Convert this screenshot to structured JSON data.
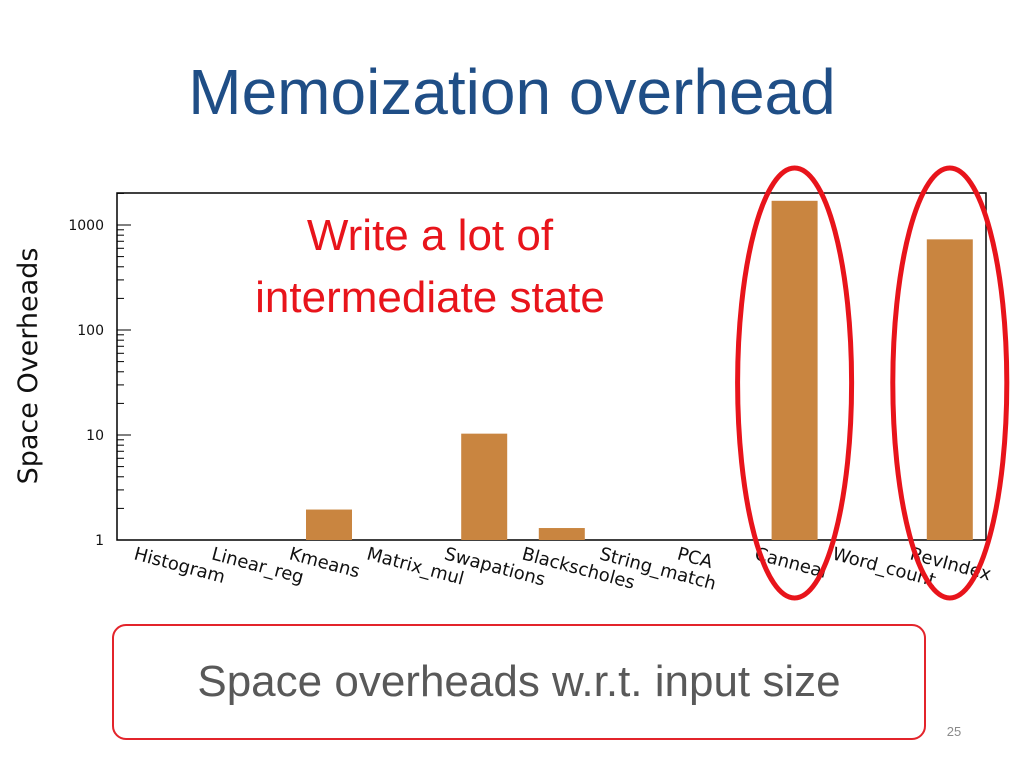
{
  "slide": {
    "title": "Memoization overhead",
    "callout_lines": [
      "Write a lot of",
      "intermediate state"
    ],
    "caption": "Space overheads w.r.t. input size",
    "page_number": "25"
  },
  "colors": {
    "title": "#1f4e86",
    "bar": "#c98540",
    "highlight": "#e8141b",
    "caption_text": "#595959"
  },
  "chart_data": {
    "type": "bar",
    "ylabel": "Space Overheads",
    "xlabel": "",
    "yscale": "log",
    "ylim": [
      1,
      2000
    ],
    "yticks": [
      1,
      10,
      100,
      1000
    ],
    "ytick_labels": [
      "1",
      "10",
      "100",
      "1000"
    ],
    "categories": [
      "Histogram",
      "Linear_reg",
      "Kmeans",
      "Matrix_mul",
      "Swapations",
      "Blackscholes",
      "String_match",
      "PCA",
      "Canneal",
      "Word_count",
      "RevIndex"
    ],
    "values": [
      1,
      1,
      1.95,
      1,
      10.3,
      1.3,
      1,
      1,
      1700,
      1,
      730
    ],
    "highlighted_categories": [
      "Canneal",
      "RevIndex"
    ]
  }
}
